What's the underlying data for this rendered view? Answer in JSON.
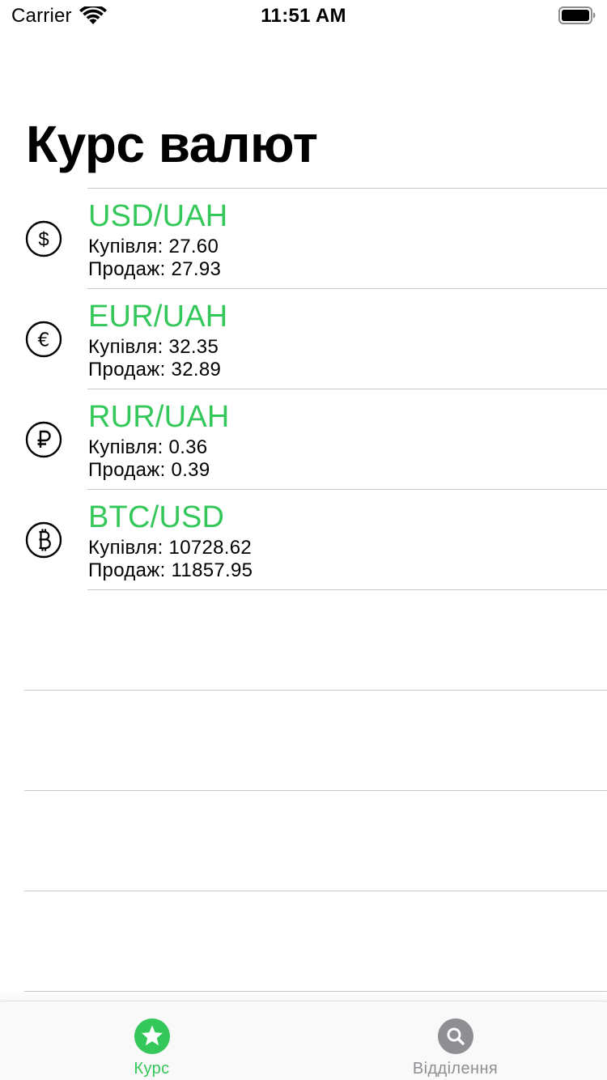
{
  "status_bar": {
    "carrier": "Carrier",
    "time": "11:51 AM"
  },
  "title": "Курс валют",
  "accent_color": "#34c759",
  "rates": [
    {
      "icon": "dollar-icon",
      "pair": "USD/UAH",
      "buy": "Купівля: 27.60",
      "sell": "Продаж: 27.93"
    },
    {
      "icon": "euro-icon",
      "pair": "EUR/UAH",
      "buy": "Купівля: 32.35",
      "sell": "Продаж: 32.89"
    },
    {
      "icon": "ruble-icon",
      "pair": "RUR/UAH",
      "buy": "Купівля: 0.36",
      "sell": "Продаж: 0.39"
    },
    {
      "icon": "bitcoin-icon",
      "pair": "BTC/USD",
      "buy": "Купівля: 10728.62",
      "sell": "Продаж: 11857.95"
    }
  ],
  "tabs": [
    {
      "icon": "star-icon",
      "label": "Курс",
      "active": true
    },
    {
      "icon": "search-icon",
      "label": "Відділення",
      "active": false
    }
  ]
}
